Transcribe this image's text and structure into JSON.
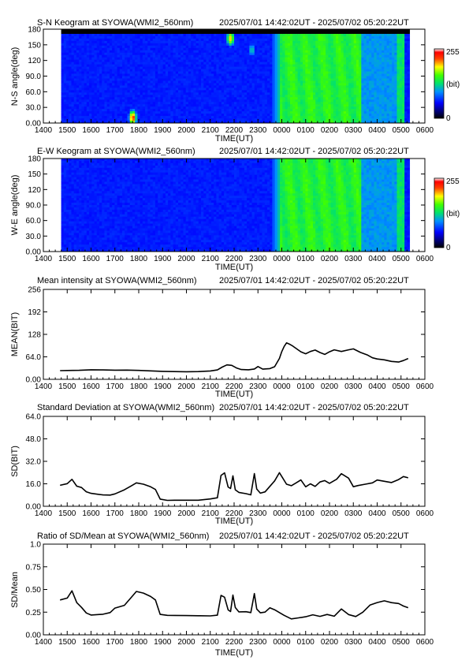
{
  "figure": {
    "station": "SYOWA(WMI2_560nm)",
    "time_range": "2025/07/01 14:42:02UT - 2025/07/02 05:20:22UT"
  },
  "chart_data": [
    {
      "type": "heatmap",
      "title": "S-N Keogram at SYOWA(WMI2_560nm)",
      "time_range": "2025/07/01 14:42:02UT - 2025/07/02 05:20:22UT",
      "xlabel": "TIME(UT)",
      "ylabel": "N-S angle(deg)",
      "x_ticks": [
        "1400",
        "1500",
        "1600",
        "1700",
        "1800",
        "1900",
        "2000",
        "2100",
        "2200",
        "2300",
        "0000",
        "0100",
        "0200",
        "0300",
        "0400",
        "0500",
        "0600"
      ],
      "y_ticks": [
        "0.00",
        "30.0",
        "60.0",
        "90.0",
        "120",
        "150",
        "180"
      ],
      "ylim": [
        0,
        180
      ],
      "colorbar": {
        "min_label": "0",
        "max_label": "255",
        "unit": "(bit)"
      },
      "data_start_hour": 14.7,
      "data_end_hour": 29.34,
      "description_levels": {
        "00_start": 21.0,
        "green_from": 24.0
      },
      "bright_spots": [
        {
          "hour": 17.75,
          "angle": 10,
          "level": 230
        },
        {
          "hour": 21.85,
          "angle": 162,
          "level": 200
        },
        {
          "hour": 22.75,
          "angle": 140,
          "level": 120
        }
      ],
      "top_black_band_from_deg": 170
    },
    {
      "type": "heatmap",
      "title": "E-W Keogram at SYOWA(WMI2_560nm)",
      "time_range": "2025/07/01 14:42:02UT - 2025/07/02 05:20:22UT",
      "xlabel": "TIME(UT)",
      "ylabel": "W-E angle(deg)",
      "x_ticks": [
        "1400",
        "1500",
        "1600",
        "1700",
        "1800",
        "1900",
        "2000",
        "2100",
        "2200",
        "2300",
        "0000",
        "0100",
        "0200",
        "0300",
        "0400",
        "0500",
        "0600"
      ],
      "y_ticks": [
        "0.00",
        "30.0",
        "60.0",
        "90.0",
        "120",
        "150",
        "180"
      ],
      "ylim": [
        0,
        180
      ],
      "colorbar": {
        "min_label": "0",
        "max_label": "255",
        "unit": "(bit)"
      },
      "data_start_hour": 14.7,
      "data_end_hour": 29.34
    },
    {
      "type": "line",
      "title": "Mean intensity at SYOWA(WMI2_560nm)",
      "time_range": "2025/07/01 14:42:02UT - 2025/07/02 05:20:22UT",
      "xlabel": "TIME(UT)",
      "ylabel": "MEAN(BIT)",
      "x_ticks": [
        "1400",
        "1500",
        "1600",
        "1700",
        "1800",
        "1900",
        "2000",
        "2100",
        "2200",
        "2300",
        "0000",
        "0100",
        "0200",
        "0300",
        "0400",
        "0500",
        "0600"
      ],
      "y_ticks": [
        "0.00",
        "64.0",
        "128",
        "192",
        "256"
      ],
      "ylim": [
        0,
        256
      ],
      "x": [
        14.7,
        15.0,
        15.5,
        16.0,
        16.5,
        17.0,
        17.5,
        18.0,
        18.5,
        19.0,
        19.5,
        20.0,
        20.5,
        21.0,
        21.3,
        21.5,
        21.7,
        21.9,
        22.1,
        22.3,
        22.6,
        22.85,
        23.0,
        23.2,
        23.5,
        23.7,
        23.9,
        24.0,
        24.1,
        24.2,
        24.3,
        24.45,
        24.6,
        24.8,
        25.0,
        25.2,
        25.4,
        25.6,
        25.8,
        26.0,
        26.2,
        26.5,
        26.8,
        27.0,
        27.3,
        27.6,
        27.8,
        28.0,
        28.3,
        28.6,
        28.9,
        29.1,
        29.3
      ],
      "y": [
        26,
        26,
        26,
        27,
        26,
        25,
        25,
        24,
        23,
        22,
        22,
        22,
        23,
        25,
        28,
        36,
        42,
        40,
        32,
        27,
        26,
        28,
        35,
        28,
        30,
        36,
        60,
        80,
        95,
        105,
        102,
        96,
        88,
        78,
        72,
        78,
        82,
        75,
        70,
        78,
        84,
        80,
        85,
        88,
        78,
        70,
        62,
        58,
        55,
        50,
        48,
        52,
        58
      ]
    },
    {
      "type": "line",
      "title": "Standard Deviation at SYOWA(WMI2_560nm)",
      "time_range": "2025/07/01 14:42:02UT - 2025/07/02 05:20:22UT",
      "xlabel": "TIME(UT)",
      "ylabel": "SD(BIT)",
      "x_ticks": [
        "1400",
        "1500",
        "1600",
        "1700",
        "1800",
        "1900",
        "2000",
        "2100",
        "2200",
        "2300",
        "0000",
        "0100",
        "0200",
        "0300",
        "0400",
        "0500",
        "0600"
      ],
      "y_ticks": [
        "0.00",
        "16.0",
        "32.0",
        "48.0",
        "64.0"
      ],
      "ylim": [
        0,
        64
      ],
      "x": [
        14.7,
        15.0,
        15.2,
        15.4,
        15.6,
        15.8,
        16.0,
        16.5,
        16.8,
        17.0,
        17.4,
        17.7,
        17.9,
        18.2,
        18.5,
        18.7,
        18.9,
        19.2,
        19.5,
        20.0,
        20.5,
        21.0,
        21.3,
        21.45,
        21.6,
        21.75,
        21.85,
        21.95,
        22.05,
        22.2,
        22.5,
        22.7,
        22.85,
        22.95,
        23.1,
        23.3,
        23.5,
        23.7,
        23.9,
        24.05,
        24.2,
        24.4,
        24.6,
        24.8,
        25.0,
        25.2,
        25.4,
        25.6,
        25.8,
        26.0,
        26.3,
        26.5,
        26.8,
        27.0,
        27.2,
        27.5,
        27.8,
        28.0,
        28.3,
        28.6,
        28.9,
        29.1,
        29.3
      ],
      "y": [
        15,
        16,
        19,
        14,
        13,
        10,
        9,
        8,
        8,
        9,
        12,
        15,
        17,
        16,
        14,
        12,
        5,
        4,
        4,
        4,
        4,
        5,
        6,
        22,
        24,
        14,
        13,
        22,
        12,
        10,
        9,
        8,
        23,
        12,
        9,
        10,
        14,
        18,
        24,
        20,
        16,
        15,
        17,
        19,
        14,
        16,
        14,
        17,
        18,
        16,
        19,
        23,
        20,
        14,
        15,
        16,
        17,
        19,
        18,
        17,
        19,
        21,
        20
      ]
    },
    {
      "type": "line",
      "title": "Ratio of SD/Mean at SYOWA(WMI2_560nm)",
      "time_range": "2025/07/01 14:42:02UT - 2025/07/02 05:20:22UT",
      "xlabel": "TIME(UT)",
      "ylabel": "SD/Mean",
      "x_ticks": [
        "1400",
        "1500",
        "1600",
        "1700",
        "1800",
        "1900",
        "2000",
        "2100",
        "2200",
        "2300",
        "0000",
        "0100",
        "0200",
        "0300",
        "0400",
        "0500",
        "0600"
      ],
      "y_ticks": [
        "0.00",
        "0.25",
        "0.50",
        "0.75",
        "1.0"
      ],
      "ylim": [
        0,
        1
      ],
      "x": [
        14.7,
        15.0,
        15.2,
        15.4,
        15.6,
        15.8,
        16.0,
        16.5,
        16.8,
        17.0,
        17.4,
        17.7,
        17.9,
        18.2,
        18.5,
        18.7,
        18.9,
        19.2,
        19.5,
        20.0,
        20.5,
        21.0,
        21.3,
        21.45,
        21.6,
        21.75,
        21.85,
        21.95,
        22.05,
        22.2,
        22.5,
        22.7,
        22.85,
        22.95,
        23.1,
        23.3,
        23.5,
        23.7,
        23.9,
        24.1,
        24.4,
        24.7,
        25.0,
        25.3,
        25.6,
        25.9,
        26.2,
        26.5,
        26.8,
        27.1,
        27.4,
        27.7,
        28.0,
        28.3,
        28.6,
        28.9,
        29.1,
        29.3
      ],
      "y": [
        0.38,
        0.4,
        0.48,
        0.35,
        0.3,
        0.24,
        0.22,
        0.23,
        0.25,
        0.3,
        0.33,
        0.42,
        0.48,
        0.46,
        0.42,
        0.38,
        0.22,
        0.21,
        0.21,
        0.21,
        0.21,
        0.21,
        0.22,
        0.44,
        0.42,
        0.28,
        0.26,
        0.44,
        0.3,
        0.25,
        0.25,
        0.24,
        0.45,
        0.28,
        0.24,
        0.25,
        0.3,
        0.28,
        0.25,
        0.22,
        0.18,
        0.19,
        0.2,
        0.22,
        0.2,
        0.22,
        0.2,
        0.28,
        0.22,
        0.2,
        0.25,
        0.33,
        0.36,
        0.38,
        0.36,
        0.35,
        0.32,
        0.3
      ]
    }
  ]
}
